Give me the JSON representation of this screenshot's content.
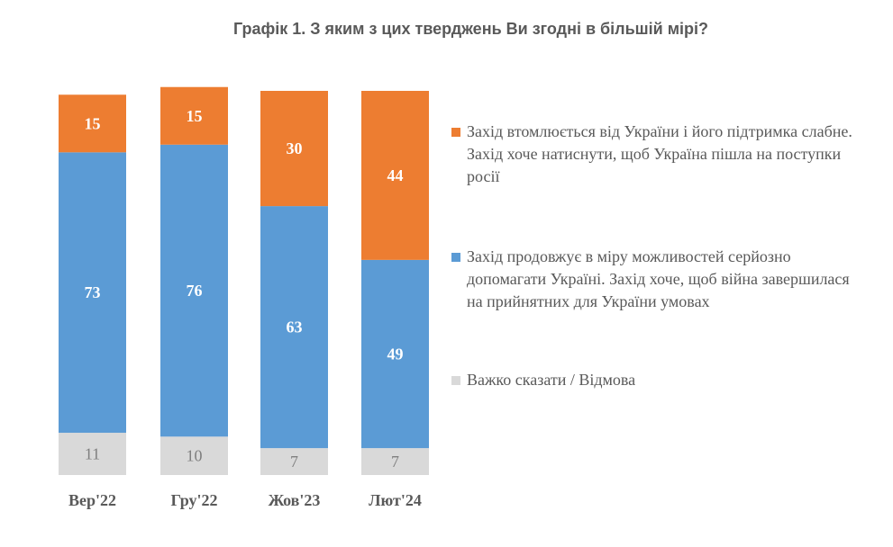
{
  "chart_data": {
    "type": "bar",
    "stacked": true,
    "title": "Графік 1. З яким з цих тверджень Ви згодні в більшій мірі?",
    "categories": [
      "Вер'22",
      "Гру'22",
      "Жов'23",
      "Лют'24"
    ],
    "series": [
      {
        "name": "Важко сказати / Відмова",
        "color": "#D9D9D9",
        "values": [
          11,
          10,
          7,
          7
        ]
      },
      {
        "name": "Захід продовжує в міру можливостей серйозно допомагати Україні. Захід хоче, щоб війна завершилася на прийнятних для України умовах",
        "color": "#5B9BD5",
        "values": [
          73,
          76,
          63,
          49
        ]
      },
      {
        "name": "Захід втомлюється від України і його підтримка слабне. Захід хоче натиснути, щоб Україна пішла на поступки росії",
        "color": "#ED7D31",
        "values": [
          15,
          15,
          30,
          44
        ]
      }
    ],
    "ylim": [
      0,
      100
    ],
    "grid": false,
    "axes_visible": false,
    "legend_position": "right",
    "xlabel": "",
    "ylabel": ""
  }
}
